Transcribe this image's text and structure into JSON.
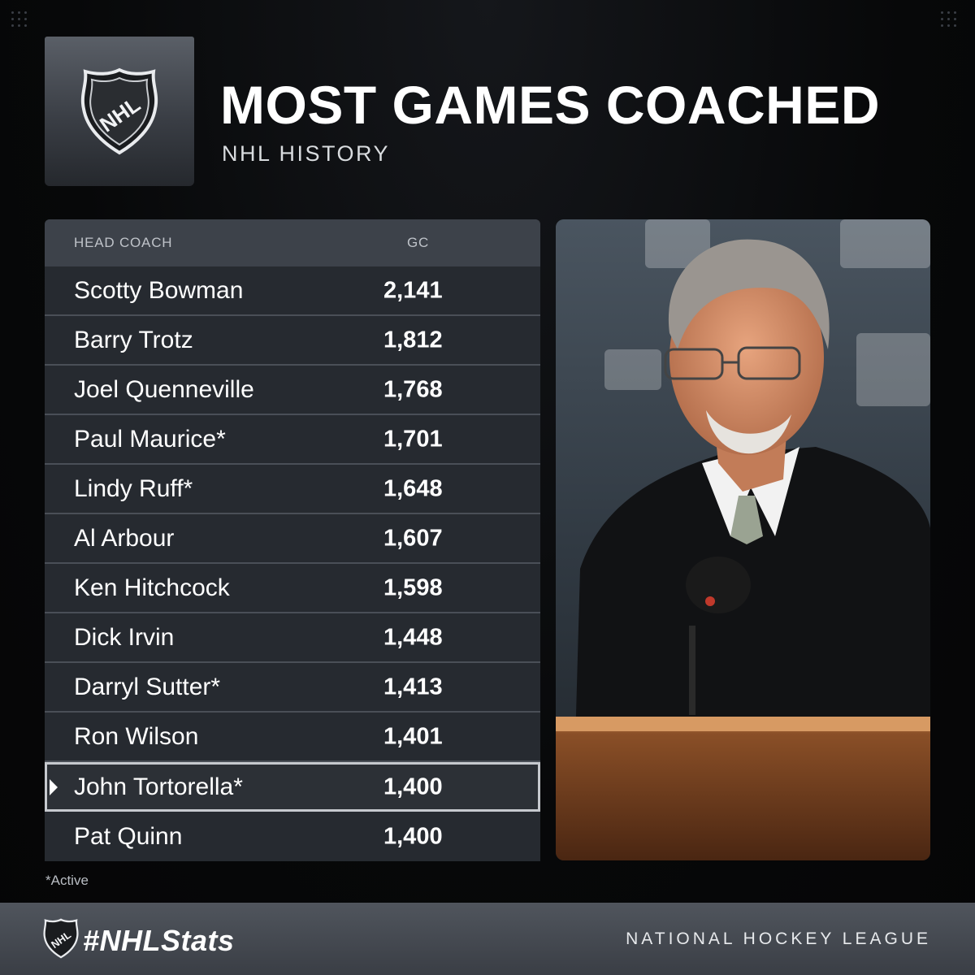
{
  "header": {
    "title": "MOST GAMES COACHED",
    "subtitle": "NHL HISTORY",
    "logo_text": "NHL"
  },
  "table": {
    "columns": [
      "HEAD COACH",
      "GC"
    ],
    "rows": [
      {
        "name": "Scotty Bowman",
        "gc": "2,141"
      },
      {
        "name": "Barry Trotz",
        "gc": "1,812"
      },
      {
        "name": "Joel Quenneville",
        "gc": "1,768"
      },
      {
        "name": "Paul Maurice*",
        "gc": "1,701"
      },
      {
        "name": "Lindy Ruff*",
        "gc": "1,648"
      },
      {
        "name": "Al Arbour",
        "gc": "1,607"
      },
      {
        "name": "Ken Hitchcock",
        "gc": "1,598"
      },
      {
        "name": "Dick Irvin",
        "gc": "1,448"
      },
      {
        "name": "Darryl Sutter*",
        "gc": "1,413"
      },
      {
        "name": "Ron Wilson",
        "gc": "1,401"
      },
      {
        "name": "John Tortorella*",
        "gc": "1,400",
        "highlighted": true
      },
      {
        "name": "Pat Quinn",
        "gc": "1,400"
      }
    ]
  },
  "footnote": "*Active",
  "footer": {
    "hashtag": "#NHLStats",
    "league": "NATIONAL HOCKEY LEAGUE"
  },
  "colors": {
    "background": "#070809",
    "table_row": "#262a30",
    "table_header": "#3d424a",
    "highlight_border": "#c6c9ce",
    "footer": "#464b52"
  }
}
